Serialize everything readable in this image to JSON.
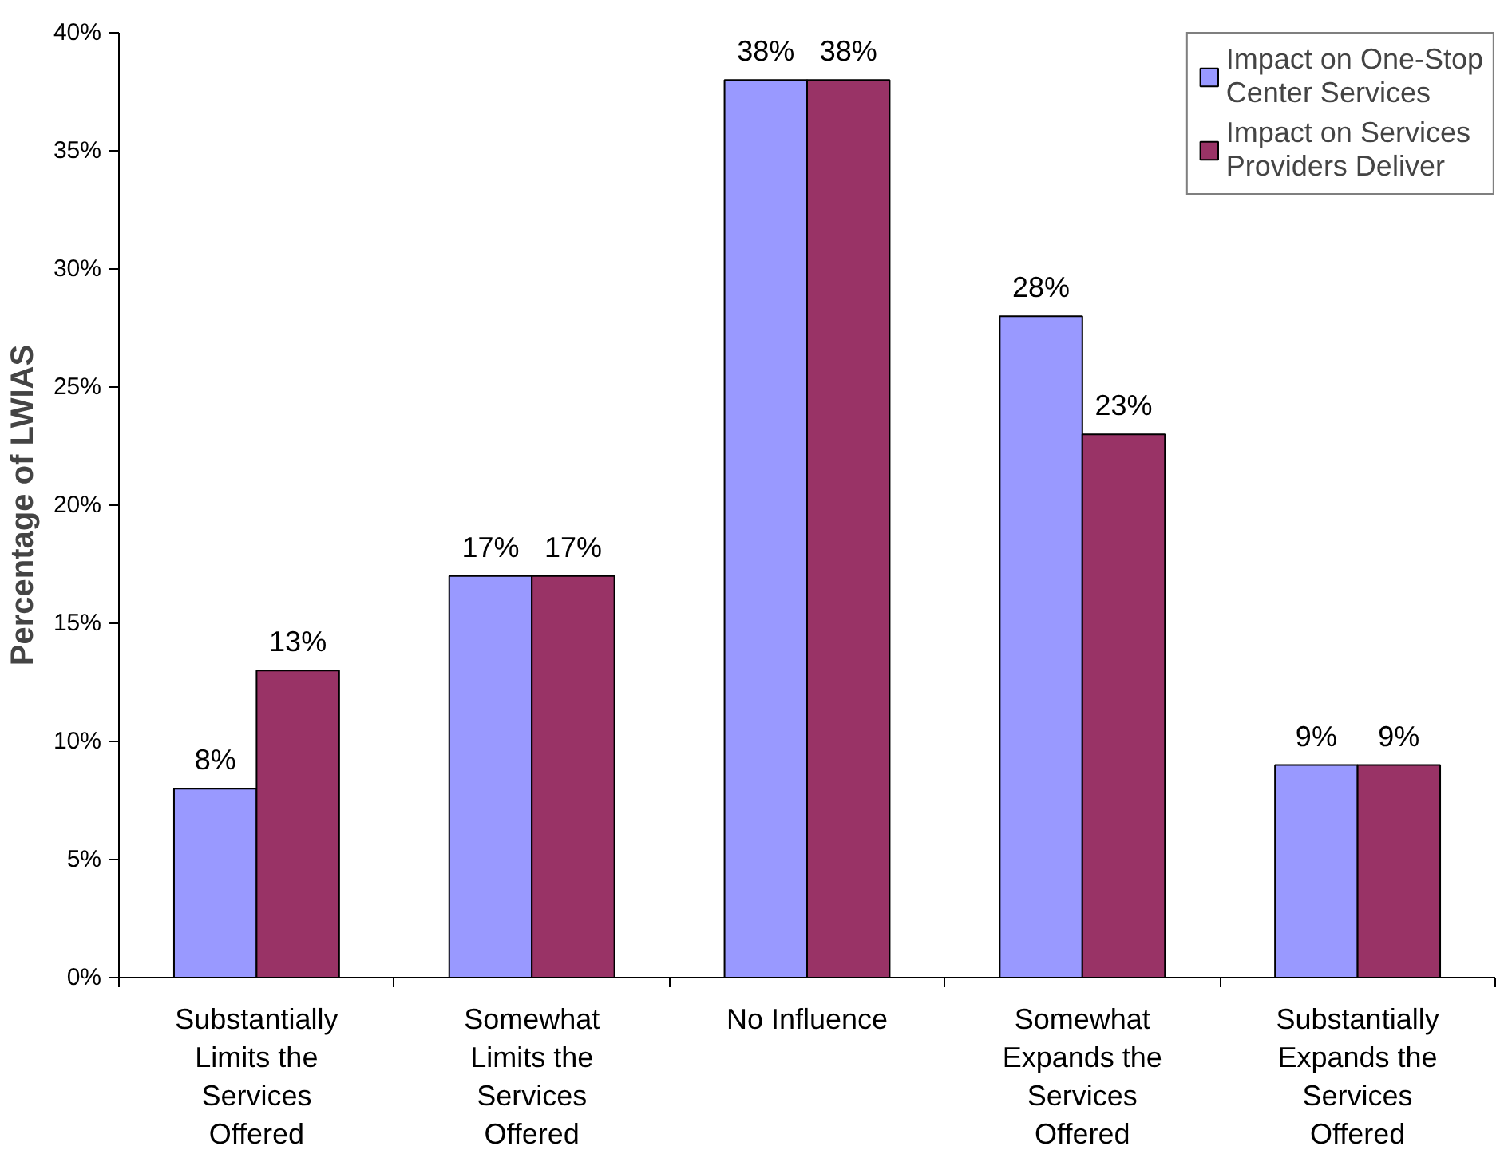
{
  "chart_data": {
    "type": "bar",
    "ylabel": "Percentage of LWIAS",
    "categories": [
      "Substantially Limits the Services Offered",
      "Somewhat Limits the Services Offered",
      "No Influence",
      "Somewhat Expands the Services Offered",
      "Substantially Expands the Services Offered"
    ],
    "series": [
      {
        "name": "Impact on One-Stop Center Services",
        "color": "#9999ff",
        "values": [
          8,
          17,
          38,
          28,
          9
        ],
        "value_labels": [
          "8%",
          "17%",
          "38%",
          "28%",
          "9%"
        ]
      },
      {
        "name": "Impact on Services Providers Deliver",
        "color": "#993366",
        "values": [
          13,
          17,
          38,
          23,
          9
        ],
        "value_labels": [
          "13%",
          "17%",
          "38%",
          "23%",
          "9%"
        ]
      }
    ],
    "ylim": [
      0,
      40
    ],
    "yticks": [
      {
        "value": 0,
        "label": "0%"
      },
      {
        "value": 5,
        "label": "5%"
      },
      {
        "value": 10,
        "label": "10%"
      },
      {
        "value": 15,
        "label": "15%"
      },
      {
        "value": 20,
        "label": "20%"
      },
      {
        "value": 25,
        "label": "25%"
      },
      {
        "value": 30,
        "label": "30%"
      },
      {
        "value": 35,
        "label": "35%"
      },
      {
        "value": 40,
        "label": "40%"
      }
    ],
    "grid": false,
    "legend": "top right"
  }
}
